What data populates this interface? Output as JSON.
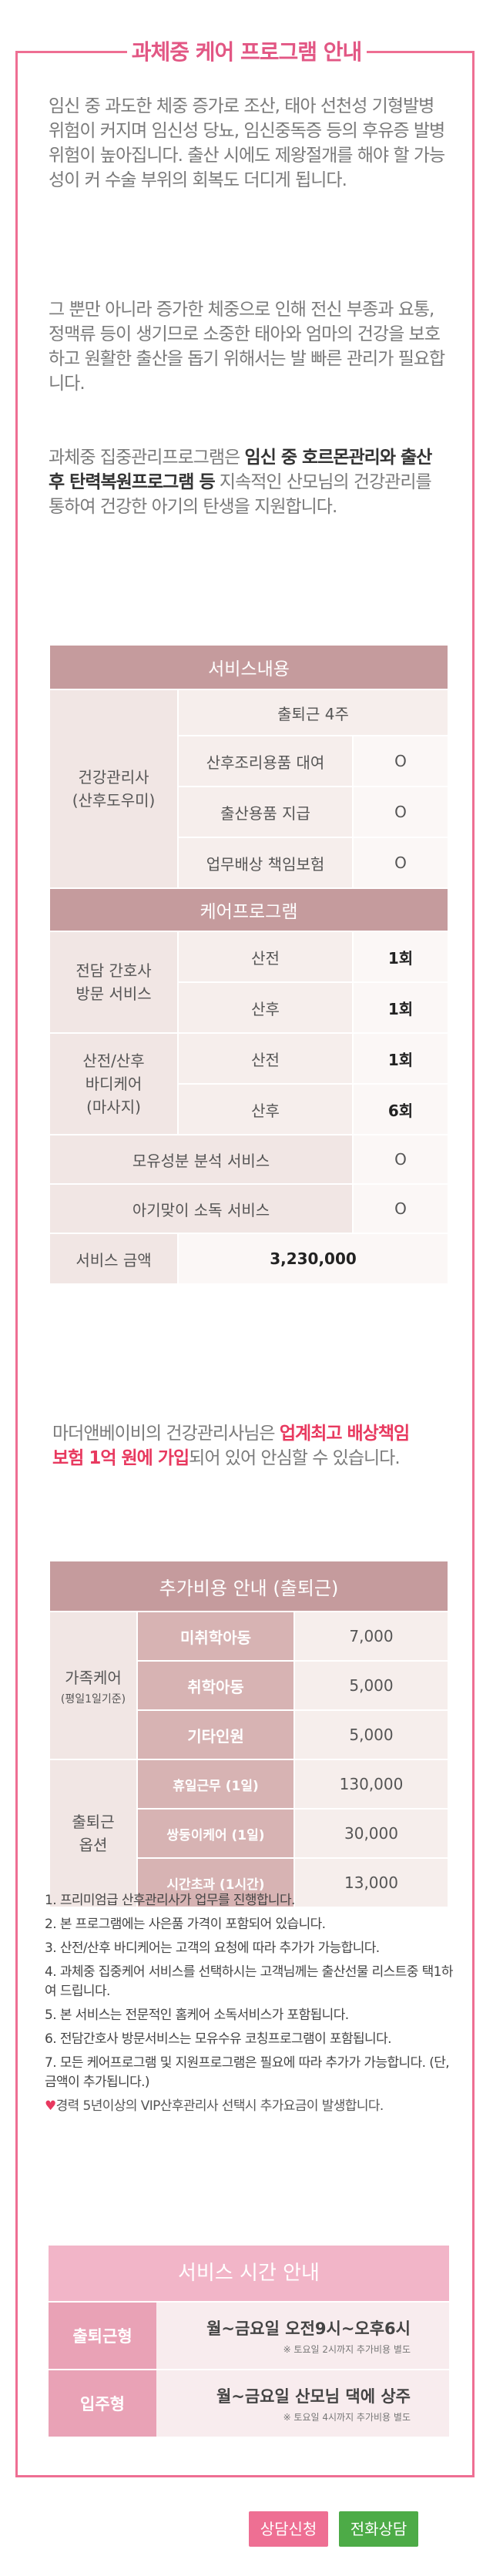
{
  "title": "과체중 케어 프로그램 안내",
  "intro": {
    "p1": "임신 중 과도한 체중 증가로 조산, 태아 선천성 기형발병 위험이 커지며 임신성 당뇨, 임신중독증 등의 후유증 발병 위험이 높아집니다. 출산 시에도 제왕절개를 해야 할 가능성이 커 수술 부위의 회복도 더디게 됩니다.",
    "p2": "그 뿐만 아니라 증가한 체중으로 인해 전신 부종과 요통, 정맥류 등이 생기므로 소중한 태아와 엄마의 건강을 보호하고 원활한 출산을 돕기 위해서는 발 빠른 관리가 필요합니다.",
    "p3_a": "과체중 집중관리프로그램은 ",
    "p3_b": "임신 중 호르몬관리와 출산 후 탄력복원프로그램 등",
    "p3_c": " 지속적인 산모님의 건강관리를 통하여 건강한 아기의 탄생을 지원합니다."
  },
  "service_table": {
    "header_service": "서비스내용",
    "row_commute": "출퇴근 4주",
    "caregiver_label": "건강관리사\n(산후도우미)",
    "items": [
      {
        "name": "산후조리용품 대여",
        "value": "O"
      },
      {
        "name": "출산용품 지급",
        "value": "O"
      },
      {
        "name": "업무배상 책임보험",
        "value": "O"
      }
    ],
    "header_care": "케어프로그램",
    "nurse_label": "전담 간호사\n방문 서비스",
    "nurse_rows": [
      {
        "name": "산전",
        "value": "1회"
      },
      {
        "name": "산후",
        "value": "1회"
      }
    ],
    "body_label": "산전/산후\n바디케어\n(마사지)",
    "body_rows": [
      {
        "name": "산전",
        "value": "1회"
      },
      {
        "name": "산후",
        "value": "6회"
      }
    ],
    "extra_rows": [
      {
        "name": "모유성분 분석 서비스",
        "value": "O"
      },
      {
        "name": "아기맞이 소독 서비스",
        "value": "O"
      }
    ],
    "price_label": "서비스 금액",
    "price_value": "3,230,000"
  },
  "insurance": {
    "a": "마더앤베이비의 건강관리사님은 ",
    "b": "업계최고 배상책임보험 1억 원에 가입",
    "c": "되어 있어 안심할 수 있습니다."
  },
  "extra_table": {
    "header": "추가비용 안내 (출퇴근)",
    "family_label": "가족케어",
    "family_sub": "(평일1일기준)",
    "family_rows": [
      {
        "name": "미취학아동",
        "value": "7,000"
      },
      {
        "name": "취학아동",
        "value": "5,000"
      },
      {
        "name": "기타인원",
        "value": "5,000"
      }
    ],
    "commute_label": "출퇴근\n옵션",
    "commute_rows": [
      {
        "name": "휴일근무 (1일)",
        "value": "130,000"
      },
      {
        "name": "쌍둥이케어 (1일)",
        "value": "30,000"
      },
      {
        "name": "시간초과 (1시간)",
        "value": "13,000"
      }
    ]
  },
  "notes": [
    "1. 프리미엄급 산후관리사가 업무를 진행합니다.",
    "2. 본 프로그램에는 사은품 가격이 포함되어 있습니다.",
    "3. 산전/산후 바디케어는 고객의 요청에 따라 추가가 가능합니다.",
    "4. 과체중 집중케어 서비스를 선택하시는 고객님께는 출산선물 리스트중 택1하여 드립니다.",
    "5. 본 서비스는 전문적인 홈케어 소독서비스가 포함됩니다.",
    "6. 전담간호사 방문서비스는 모유수유 코칭프로그램이 포함됩니다.",
    "7. 모든 케어프로그램 및 지원프로그램은 필요에 따라 추가가 가능합니다. (단, 금액이 추가됩니다.)"
  ],
  "heart_note": "경력 5년이상의 VIP산후관리사 선택시 추가요금이 발생합니다.",
  "service_time": {
    "title": "서비스 시간 안내",
    "rows": [
      {
        "label": "출퇴근형",
        "main": "월~금요일 오전9시~오후6시",
        "sub": "※ 토요일 2시까지 추가비용 별도"
      },
      {
        "label": "입주형",
        "main": "월~금요일 산모님 댁에 상주",
        "sub": "※ 토요일 4시까지 추가비용 별도"
      }
    ]
  },
  "buttons": {
    "consult": "상담신청",
    "phone": "전화상담"
  },
  "colors": {
    "accent_pink": "#ee6f93",
    "table_header": "#c59b9d",
    "phone_green": "#4dab47"
  }
}
